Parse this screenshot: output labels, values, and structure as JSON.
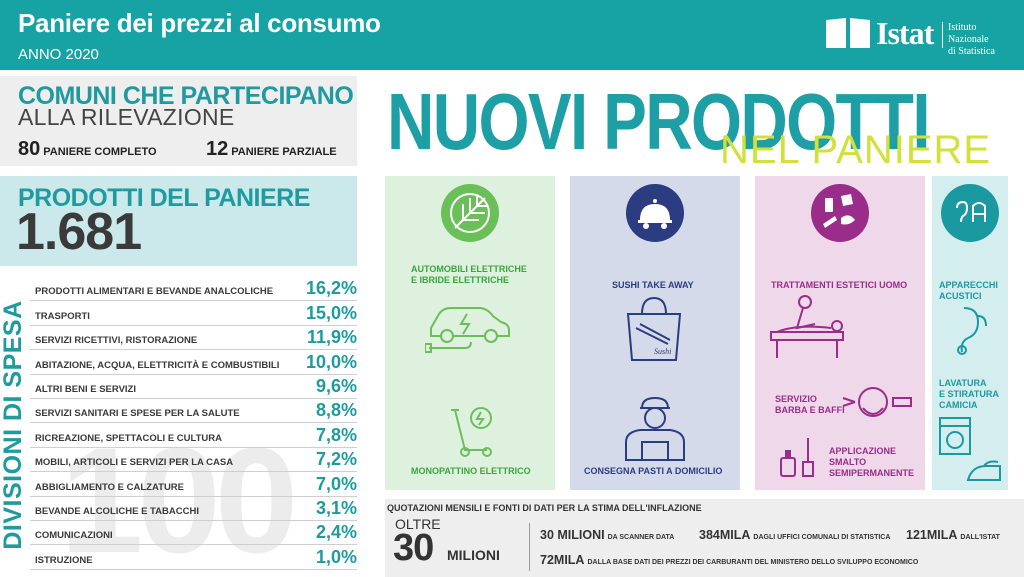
{
  "header": {
    "title": "Paniere dei prezzi al consumo",
    "subtitle": "ANNO 2020",
    "logo_name": "Istat",
    "logo_institute_line1": "Istituto Nazionale",
    "logo_institute_line2": "di Statistica",
    "color": "#17a2a4"
  },
  "comuni": {
    "title": "COMUNI CHE PARTECIPANO",
    "subtitle": "ALLA RILEVAZIONE",
    "stats": [
      {
        "number": "80",
        "label": "PANIERE COMPLETO"
      },
      {
        "number": "12",
        "label": "PANIERE PARZIALE"
      }
    ]
  },
  "prodotti": {
    "title": "PRODOTTI DEL PANIERE",
    "value": "1.681"
  },
  "divisioni": {
    "side_label": "DIVISIONI DI SPESA",
    "watermark": "100",
    "rows": [
      {
        "label": "PRODOTTI ALIMENTARI E BEVANDE ANALCOLICHE",
        "pct": "16,2%"
      },
      {
        "label": "TRASPORTI",
        "pct": "15,0%"
      },
      {
        "label": "SERVIZI RICETTIVI, RISTORAZIONE",
        "pct": "11,9%"
      },
      {
        "label": "ABITAZIONE, ACQUA, ELETTRICITÀ E COMBUSTIBILI",
        "pct": "10,0%"
      },
      {
        "label": "ALTRI BENI E SERVIZI",
        "pct": "9,6%"
      },
      {
        "label": "SERVIZI SANITARI E SPESE PER LA SALUTE",
        "pct": "8,8%"
      },
      {
        "label": "RICREAZIONE, SPETTACOLI E CULTURA",
        "pct": "7,8%"
      },
      {
        "label": "MOBILI, ARTICOLI E SERVIZI PER LA CASA",
        "pct": "7,2%"
      },
      {
        "label": "ABBIGLIAMENTO E CALZATURE",
        "pct": "7,0%"
      },
      {
        "label": "BEVANDE ALCOLICHE E TABACCHI",
        "pct": "3,1%"
      },
      {
        "label": "COMUNICAZIONI",
        "pct": "2,4%"
      },
      {
        "label": "ISTRUZIONE",
        "pct": "1,0%"
      }
    ]
  },
  "nuovi": {
    "title": "NUOVI PRODOTTI",
    "subtitle": "NEL PANIERE",
    "categories": {
      "green": {
        "icon": "leaf-icon",
        "items": [
          "AUTOMOBILI ELETTRICHE",
          "E IBRIDE ELETTRICHE",
          "MONOPATTINO ELETTRICO"
        ]
      },
      "blue": {
        "icon": "food-cloche-icon",
        "items": [
          "SUSHI TAKE AWAY",
          "CONSEGNA PASTI A DOMICILIO"
        ],
        "bag_text": "Sushi"
      },
      "pink": {
        "icon": "beauty-icon",
        "items": [
          "TRATTAMENTI ESTETICI UOMO",
          "SERVIZIO",
          "BARBA E BAFFI",
          "APPLICAZIONE",
          "SMALTO",
          "SEMIPERMANENTE"
        ]
      },
      "cyan": {
        "icon": "hearing-laundry-icon",
        "items": [
          "APPARECCHI",
          "ACUSTICI",
          "LAVATURA",
          "E STIRATURA",
          "CAMICIA"
        ]
      }
    }
  },
  "fonti": {
    "caption": "QUOTAZIONI MENSILI E FONTI DI DATI PER LA STIMA DELL'INFLAZIONE",
    "oltre": "OLTRE",
    "big_number": "30",
    "big_unit": "MILIONI",
    "sources": [
      {
        "value": "30 MILIONI",
        "label": "DA SCANNER DATA"
      },
      {
        "value": "384MILA",
        "label": "DAGLI UFFICI COMUNALI DI STATISTICA"
      },
      {
        "value": "121MILA",
        "label": "DALL'ISTAT"
      },
      {
        "value": "72MILA",
        "label": "DALLA BASE DATI DEI PREZZI DEI CARBURANTI DEL MINISTERO DELLO SVILUPPO ECONOMICO"
      }
    ]
  }
}
